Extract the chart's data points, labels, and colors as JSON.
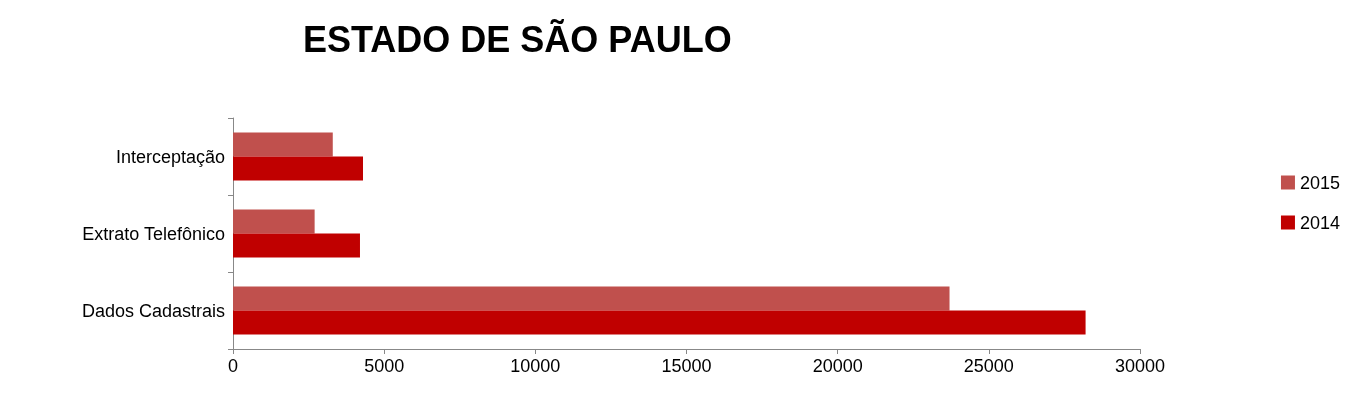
{
  "chart_data": {
    "type": "bar",
    "orientation": "horizontal",
    "title": "ESTADO DE SÃO PAULO",
    "categories": [
      "Interceptação",
      "Extrato Telefônico",
      "Dados Cadastrais"
    ],
    "series": [
      {
        "name": "2015",
        "color": "#c0504d",
        "values": [
          3300,
          2700,
          23700
        ]
      },
      {
        "name": "2014",
        "color": "#c00000",
        "values": [
          4300,
          4200,
          28200
        ]
      }
    ],
    "xlim": [
      0,
      30000
    ],
    "xticks": [
      0,
      5000,
      10000,
      15000,
      20000,
      25000,
      30000
    ],
    "grid": false,
    "legend": "right"
  }
}
